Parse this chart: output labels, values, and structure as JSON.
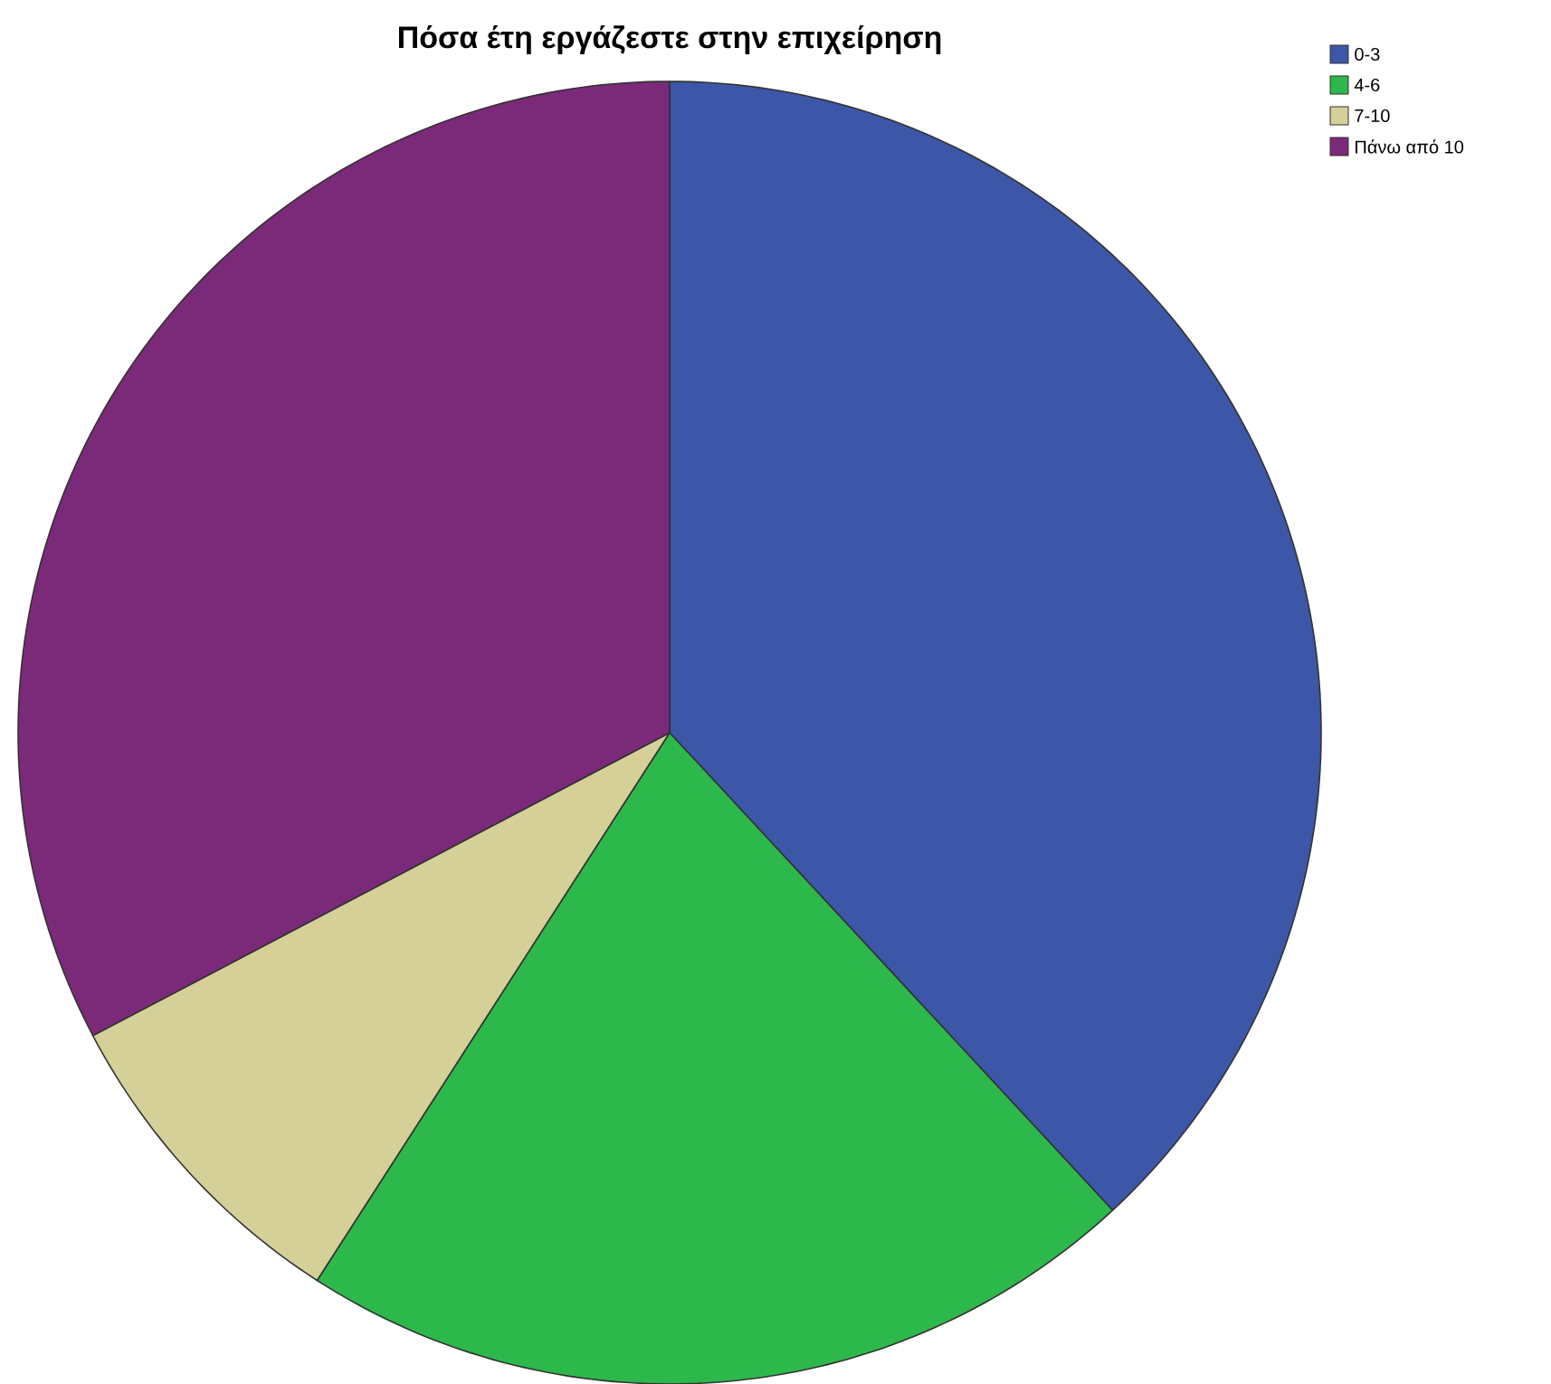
{
  "chart_data": {
    "type": "pie",
    "title": "Πόσα έτη εργάζεστε στην επιχείρηση",
    "categories": [
      "0-3",
      "4-6",
      "7-10",
      "Πάνω από 10"
    ],
    "values": [
      38.1,
      21.0,
      8.2,
      32.7
    ],
    "colors": [
      "#3c57a8",
      "#2db84b",
      "#d5cf98",
      "#7b2a79"
    ],
    "legend": "top right"
  }
}
